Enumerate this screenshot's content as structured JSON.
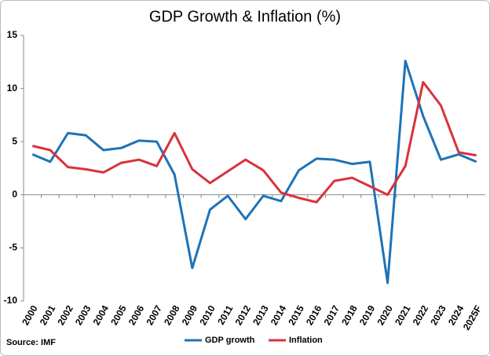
{
  "chart_data": {
    "type": "line",
    "title": "GDP Growth & Inflation (%)",
    "source": "Source: IMF",
    "categories": [
      "2000",
      "2001",
      "2002",
      "2003",
      "2004",
      "2005",
      "2006",
      "2007",
      "2008",
      "2009",
      "2010",
      "2011",
      "2012",
      "2013",
      "2014",
      "2015",
      "2016",
      "2017",
      "2018",
      "2019",
      "2020",
      "2021",
      "2022",
      "2023",
      "2024",
      "2025F"
    ],
    "series": [
      {
        "name": "GDP growth",
        "color": "#1f72b6",
        "values": [
          3.8,
          3.1,
          5.8,
          5.6,
          4.2,
          4.4,
          5.1,
          5.0,
          1.9,
          -6.9,
          -1.4,
          -0.1,
          -2.3,
          -0.1,
          -0.6,
          2.3,
          3.4,
          3.3,
          2.9,
          3.1,
          -8.3,
          12.6,
          7.4,
          3.3,
          3.8,
          3.1
        ]
      },
      {
        "name": "Inflation",
        "color": "#d9323c",
        "values": [
          4.6,
          4.2,
          2.6,
          2.4,
          2.1,
          3.0,
          3.3,
          2.7,
          5.8,
          2.4,
          1.1,
          2.2,
          3.3,
          2.3,
          0.2,
          -0.3,
          -0.7,
          1.3,
          1.6,
          0.8,
          0.0,
          2.7,
          10.6,
          8.4,
          4.0,
          3.7
        ]
      }
    ],
    "ylim": [
      -10,
      15
    ],
    "yticks": [
      -10,
      -5,
      0,
      5,
      10,
      15
    ],
    "grid": false,
    "legend": "bottom"
  }
}
